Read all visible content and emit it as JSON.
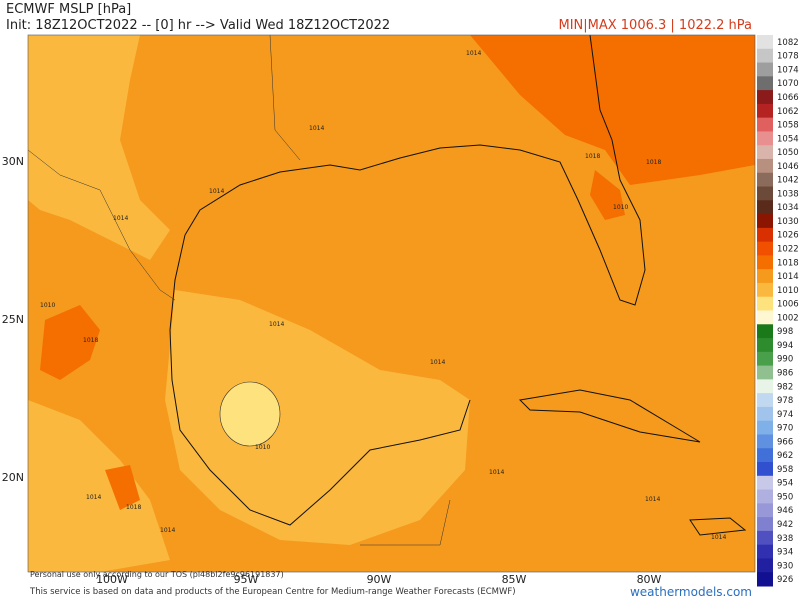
{
  "header": {
    "title": "ECMWF MSLP [hPa]",
    "subtitle": "Init: 18Z12OCT2022 -- [0] hr --> Valid Wed 18Z12OCT2022",
    "minmax": "MIN|MAX 1006.3 | 1022.2 hPa"
  },
  "axes": {
    "lat_labels": [
      "30N",
      "25N",
      "20N"
    ],
    "lon_labels": [
      "100W",
      "95W",
      "90W",
      "85W",
      "80W"
    ]
  },
  "colorbar": [
    {
      "label": 1082,
      "color": "#e2e2e2"
    },
    {
      "label": 1078,
      "color": "#c6c6c6"
    },
    {
      "label": 1074,
      "color": "#9e9e9e"
    },
    {
      "label": 1070,
      "color": "#6e6e6e"
    },
    {
      "label": 1066,
      "color": "#8b1a1a"
    },
    {
      "label": 1062,
      "color": "#b42222"
    },
    {
      "label": 1058,
      "color": "#e06060"
    },
    {
      "label": 1054,
      "color": "#e89090"
    },
    {
      "label": 1050,
      "color": "#d8b4aa"
    },
    {
      "label": 1046,
      "color": "#b89080"
    },
    {
      "label": 1042,
      "color": "#8b6b5b"
    },
    {
      "label": 1038,
      "color": "#6b4a3a"
    },
    {
      "label": 1034,
      "color": "#5a2a1a"
    },
    {
      "label": 1030,
      "color": "#8b1500"
    },
    {
      "label": 1026,
      "color": "#d83000"
    },
    {
      "label": 1022,
      "color": "#f05000"
    },
    {
      "label": 1018,
      "color": "#f56e00"
    },
    {
      "label": 1014,
      "color": "#f59a1c"
    },
    {
      "label": 1010,
      "color": "#fbb83e"
    },
    {
      "label": 1006,
      "color": "#fde27e"
    },
    {
      "label": 1002,
      "color": "#fff6d2"
    },
    {
      "label": 998,
      "color": "#1a7a1a"
    },
    {
      "label": 994,
      "color": "#2e8b2e"
    },
    {
      "label": 990,
      "color": "#4aa04a"
    },
    {
      "label": 986,
      "color": "#90c090"
    },
    {
      "label": 982,
      "color": "#e8f4e8"
    },
    {
      "label": 978,
      "color": "#c0d8f0"
    },
    {
      "label": 974,
      "color": "#a0c4ec"
    },
    {
      "label": 970,
      "color": "#80b0e8"
    },
    {
      "label": 966,
      "color": "#6090e0"
    },
    {
      "label": 962,
      "color": "#4070d8"
    },
    {
      "label": 958,
      "color": "#3050d0"
    },
    {
      "label": 954,
      "color": "#c8c8e8"
    },
    {
      "label": 950,
      "color": "#b0b0e0"
    },
    {
      "label": 946,
      "color": "#9898d8"
    },
    {
      "label": 942,
      "color": "#8080d0"
    },
    {
      "label": 938,
      "color": "#5050c0"
    },
    {
      "label": 934,
      "color": "#3030b0"
    },
    {
      "label": 930,
      "color": "#2020a0"
    },
    {
      "label": 926,
      "color": "#101090"
    }
  ],
  "contour_labels": [
    "1014",
    "1014",
    "1014",
    "1014",
    "1018",
    "1018",
    "1010",
    "1010",
    "1018",
    "1014",
    "1014",
    "1010",
    "1014",
    "1014",
    "1014",
    "1018",
    "1014",
    "1014"
  ],
  "footer": {
    "tos": "Personal use only according to our TOS (pl48bl2fe9c96191837)",
    "credit": "This service is based on data and products of the European Centre for Medium-range Weather Forecasts (ECMWF)",
    "watermark": "weathermodels.com"
  }
}
